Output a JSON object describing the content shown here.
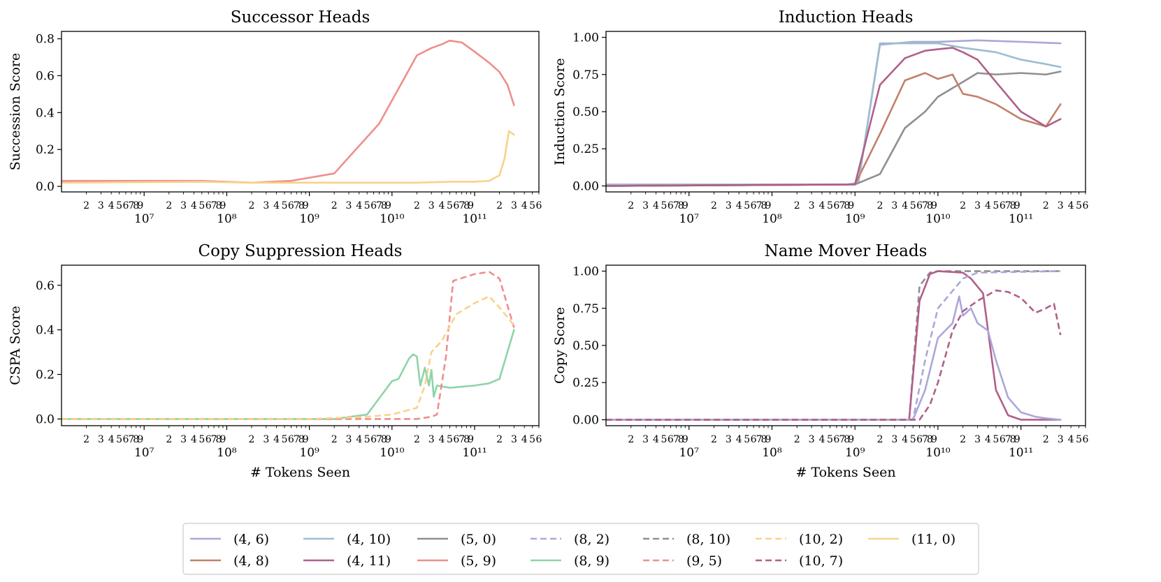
{
  "chart_data": [
    {
      "type": "line",
      "title": "Successor Heads",
      "xlabel": "",
      "ylabel": "Succession Score",
      "xscale": "log",
      "xlim": [
        1000000,
        600000000000
      ],
      "ylim": [
        -0.03,
        0.84
      ],
      "yticks": [
        0.0,
        0.2,
        0.4,
        0.6,
        0.8
      ],
      "ytick_labels": [
        "0.0",
        "0.2",
        "0.4",
        "0.6",
        "0.8"
      ],
      "xtick_labels": [
        "10⁷",
        "10⁸",
        "10⁹",
        "10¹⁰",
        "10¹¹"
      ],
      "series": [
        {
          "key": "5,9",
          "x": [
            1000000,
            50000000,
            200000000,
            600000000,
            2000000000,
            7000000000,
            20000000000,
            30000000000,
            40000000000,
            50000000000,
            70000000000,
            100000000000,
            150000000000,
            200000000000,
            250000000000,
            300000000000
          ],
          "y": [
            0.03,
            0.03,
            0.02,
            0.03,
            0.07,
            0.34,
            0.71,
            0.75,
            0.77,
            0.79,
            0.78,
            0.73,
            0.67,
            0.62,
            0.55,
            0.44
          ]
        },
        {
          "key": "11,0",
          "x": [
            1000000,
            50000000,
            200000000,
            600000000,
            2000000000,
            7000000000,
            20000000000,
            50000000000,
            100000000000,
            150000000000,
            200000000000,
            230000000000,
            260000000000,
            300000000000
          ],
          "y": [
            0.02,
            0.025,
            0.02,
            0.02,
            0.02,
            0.02,
            0.02,
            0.025,
            0.025,
            0.03,
            0.06,
            0.15,
            0.3,
            0.28
          ]
        }
      ]
    },
    {
      "type": "line",
      "title": "Induction Heads",
      "xlabel": "",
      "ylabel": "Induction Score",
      "xscale": "log",
      "xlim": [
        1000000,
        600000000000
      ],
      "ylim": [
        -0.04,
        1.04
      ],
      "yticks": [
        0.0,
        0.25,
        0.5,
        0.75,
        1.0
      ],
      "ytick_labels": [
        "0.00",
        "0.25",
        "0.50",
        "0.75",
        "1.00"
      ],
      "xtick_labels": [
        "10⁷",
        "10⁸",
        "10⁹",
        "10¹⁰",
        "10¹¹"
      ],
      "series": [
        {
          "key": "4,6",
          "x": [
            1000000,
            800000000,
            1100000000,
            2000000000,
            5000000000,
            10000000000,
            30000000000,
            100000000000,
            300000000000
          ],
          "y": [
            0.01,
            0.01,
            0.02,
            0.95,
            0.97,
            0.97,
            0.98,
            0.97,
            0.96
          ]
        },
        {
          "key": "4,10",
          "x": [
            1000000,
            800000000,
            1100000000,
            2000000000,
            5000000000,
            10000000000,
            20000000000,
            50000000000,
            100000000000,
            200000000000,
            300000000000
          ],
          "y": [
            0.01,
            0.01,
            0.02,
            0.96,
            0.96,
            0.96,
            0.93,
            0.9,
            0.85,
            0.82,
            0.8
          ]
        },
        {
          "key": "5,0",
          "x": [
            1000000,
            1000000000,
            2000000000,
            4000000000,
            7000000000,
            10000000000,
            20000000000,
            30000000000,
            50000000000,
            100000000000,
            200000000000,
            300000000000
          ],
          "y": [
            0.0,
            0.01,
            0.08,
            0.39,
            0.5,
            0.6,
            0.7,
            0.76,
            0.75,
            0.76,
            0.75,
            0.77
          ]
        },
        {
          "key": "4,8",
          "x": [
            1000000,
            1000000000,
            2000000000,
            4000000000,
            7000000000,
            10000000000,
            15000000000,
            20000000000,
            30000000000,
            50000000000,
            100000000000,
            200000000000,
            300000000000
          ],
          "y": [
            0.0,
            0.01,
            0.35,
            0.71,
            0.76,
            0.72,
            0.75,
            0.62,
            0.6,
            0.55,
            0.45,
            0.4,
            0.55
          ]
        },
        {
          "key": "4,11",
          "x": [
            1000000,
            1000000000,
            2000000000,
            4000000000,
            7000000000,
            10000000000,
            15000000000,
            20000000000,
            30000000000,
            50000000000,
            100000000000,
            200000000000,
            300000000000
          ],
          "y": [
            0.0,
            0.01,
            0.68,
            0.86,
            0.91,
            0.92,
            0.93,
            0.9,
            0.85,
            0.7,
            0.5,
            0.4,
            0.45
          ]
        }
      ]
    },
    {
      "type": "line",
      "title": "Copy Suppression Heads",
      "xlabel": "# Tokens Seen",
      "ylabel": "CSPA Score",
      "xscale": "log",
      "xlim": [
        1000000,
        600000000000
      ],
      "ylim": [
        -0.03,
        0.69
      ],
      "yticks": [
        0.0,
        0.2,
        0.4,
        0.6
      ],
      "ytick_labels": [
        "0.0",
        "0.2",
        "0.4",
        "0.6"
      ],
      "xtick_labels": [
        "10⁷",
        "10⁸",
        "10⁹",
        "10¹⁰",
        "10¹¹"
      ],
      "series": [
        {
          "key": "8,9",
          "x": [
            1000000,
            2000000000,
            5000000000,
            10000000000,
            12000000000,
            16000000000,
            18000000000,
            20000000000,
            22000000000,
            25000000000,
            28000000000,
            30000000000,
            32000000000,
            35000000000,
            50000000000,
            100000000000,
            150000000000,
            200000000000,
            300000000000
          ],
          "y": [
            0.0,
            0.0,
            0.02,
            0.17,
            0.18,
            0.27,
            0.29,
            0.28,
            0.15,
            0.23,
            0.15,
            0.22,
            0.1,
            0.15,
            0.14,
            0.15,
            0.16,
            0.18,
            0.4
          ]
        },
        {
          "key": "9,5",
          "x": [
            1000000,
            20000000000,
            30000000000,
            35000000000,
            45000000000,
            55000000000,
            100000000000,
            150000000000,
            200000000000,
            300000000000
          ],
          "y": [
            0.0,
            0.0,
            0.01,
            0.02,
            0.28,
            0.62,
            0.65,
            0.66,
            0.63,
            0.41
          ]
        },
        {
          "key": "10,2",
          "x": [
            1000000,
            1000000000,
            5000000000,
            10000000000,
            20000000000,
            25000000000,
            30000000000,
            40000000000,
            60000000000,
            100000000000,
            150000000000,
            200000000000,
            300000000000
          ],
          "y": [
            0.0,
            0.0,
            0.01,
            0.02,
            0.05,
            0.15,
            0.3,
            0.35,
            0.47,
            0.52,
            0.55,
            0.5,
            0.42
          ]
        }
      ]
    },
    {
      "type": "line",
      "title": "Name Mover Heads",
      "xlabel": "# Tokens Seen",
      "ylabel": "Copy Score",
      "xscale": "log",
      "xlim": [
        1000000,
        600000000000
      ],
      "ylim": [
        -0.04,
        1.04
      ],
      "yticks": [
        0.0,
        0.25,
        0.5,
        0.75,
        1.0
      ],
      "ytick_labels": [
        "0.00",
        "0.25",
        "0.50",
        "0.75",
        "1.00"
      ],
      "xtick_labels": [
        "10⁷",
        "10⁸",
        "10⁹",
        "10¹⁰",
        "10¹¹"
      ],
      "series": [
        {
          "key": "8,10",
          "x": [
            1000000,
            4500000000,
            6000000000,
            8000000000,
            10000000000,
            20000000000,
            50000000000,
            300000000000
          ],
          "y": [
            0.0,
            0.0,
            0.9,
            0.99,
            1.0,
            1.0,
            1.0,
            1.0
          ]
        },
        {
          "key": "4,11",
          "x": [
            1000000,
            4500000000,
            6000000000,
            8000000000,
            10000000000,
            20000000000,
            25000000000,
            35000000000,
            50000000000,
            70000000000,
            100000000000,
            300000000000
          ],
          "y": [
            0.0,
            0.0,
            0.8,
            0.98,
            1.0,
            0.99,
            0.95,
            0.85,
            0.2,
            0.03,
            0.0,
            0.0
          ]
        },
        {
          "key": "8,2",
          "x": [
            1000000,
            5000000000,
            7000000000,
            10000000000,
            20000000000,
            30000000000,
            300000000000
          ],
          "y": [
            0.0,
            0.0,
            0.4,
            0.75,
            0.95,
            0.99,
            1.0
          ]
        },
        {
          "key": "4,6",
          "x": [
            1000000,
            5000000000,
            7000000000,
            10000000000,
            15000000000,
            18000000000,
            20000000000,
            25000000000,
            30000000000,
            40000000000,
            50000000000,
            70000000000,
            100000000000,
            150000000000,
            200000000000,
            300000000000
          ],
          "y": [
            0.0,
            0.0,
            0.2,
            0.55,
            0.65,
            0.83,
            0.7,
            0.75,
            0.65,
            0.6,
            0.4,
            0.15,
            0.05,
            0.02,
            0.01,
            0.0
          ]
        },
        {
          "key": "10,7",
          "x": [
            1000000,
            6000000000,
            8000000000,
            10000000000,
            15000000000,
            20000000000,
            30000000000,
            50000000000,
            70000000000,
            100000000000,
            150000000000,
            200000000000,
            250000000000,
            300000000000
          ],
          "y": [
            0.0,
            0.0,
            0.1,
            0.25,
            0.6,
            0.73,
            0.8,
            0.87,
            0.86,
            0.82,
            0.72,
            0.75,
            0.78,
            0.57
          ]
        }
      ]
    }
  ],
  "legend": {
    "placement": "bottom-center",
    "entries": [
      {
        "key": "4,6",
        "label": "(4, 6)",
        "color": "#aaa8d9",
        "dashed": false
      },
      {
        "key": "4,10",
        "label": "(4, 10)",
        "color": "#9dbccf",
        "dashed": false
      },
      {
        "key": "5,0",
        "label": "(5, 0)",
        "color": "#8f8f8f",
        "dashed": false
      },
      {
        "key": "8,2",
        "label": "(8, 2)",
        "color": "#aaa8d9",
        "dashed": true
      },
      {
        "key": "8,10",
        "label": "(8, 10)",
        "color": "#8f8f8f",
        "dashed": true
      },
      {
        "key": "10,2",
        "label": "(10, 2)",
        "color": "#f8d28a",
        "dashed": true
      },
      {
        "key": "11,0",
        "label": "(11, 0)",
        "color": "#f8d28a",
        "dashed": false
      },
      {
        "key": "4,8",
        "label": "(4, 8)",
        "color": "#c2806a",
        "dashed": false
      },
      {
        "key": "4,11",
        "label": "(4, 11)",
        "color": "#b05f8a",
        "dashed": false
      },
      {
        "key": "5,9",
        "label": "(5, 9)",
        "color": "#ee8f8a",
        "dashed": false
      },
      {
        "key": "8,9",
        "label": "(8, 9)",
        "color": "#8dd4a8",
        "dashed": false
      },
      {
        "key": "9,5",
        "label": "(9, 5)",
        "color": "#ee8f8a",
        "dashed": true
      },
      {
        "key": "10,7",
        "label": "(10, 7)",
        "color": "#b05f8a",
        "dashed": true
      }
    ]
  }
}
